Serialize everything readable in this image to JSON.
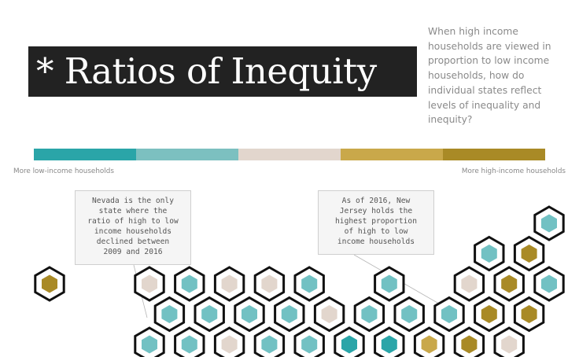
{
  "header": {
    "title": "* Ratios of Inequity",
    "subtitle": "When high income households are viewed in proportion to low income households, how do individual states reflect levels of inequality and inequity?"
  },
  "legend": {
    "colors": [
      "#2aa5a8",
      "#7cc0c0",
      "#e2d6cd",
      "#c9a84a",
      "#a98a26"
    ],
    "left_label": "More low-income households",
    "right_label": "More high-income households"
  },
  "annotations": {
    "nevada": "Nevada is the only\nstate where the\nratio of high to low\nincome households\ndeclined between\n2009 and 2016",
    "new_jersey": "As of 2016, New\nJersey holds the\nhighest proportion\nof high to low\nincome households"
  },
  "hex_map": {
    "palette": {
      "teal_dark": "#2aa5a8",
      "teal": "#72c1c3",
      "beige": "#e2d6cd",
      "gold": "#a98a26",
      "gold_light": "#c9a84a"
    },
    "tiles": [
      {
        "row": 0,
        "col": 12.5,
        "color": "teal"
      },
      {
        "row": 1,
        "col": 11,
        "color": "teal"
      },
      {
        "row": 1,
        "col": 12,
        "color": "gold"
      },
      {
        "row": 2,
        "col": 0,
        "color": "gold"
      },
      {
        "row": 2,
        "col": 2.5,
        "color": "beige"
      },
      {
        "row": 2,
        "col": 3.5,
        "color": "teal"
      },
      {
        "row": 2,
        "col": 4.5,
        "color": "beige"
      },
      {
        "row": 2,
        "col": 5.5,
        "color": "beige"
      },
      {
        "row": 2,
        "col": 6.5,
        "color": "teal"
      },
      {
        "row": 2,
        "col": 8.5,
        "color": "teal"
      },
      {
        "row": 2,
        "col": 10.5,
        "color": "beige"
      },
      {
        "row": 2,
        "col": 11.5,
        "color": "gold"
      },
      {
        "row": 2,
        "col": 12.5,
        "color": "teal"
      },
      {
        "row": 3,
        "col": 3,
        "color": "teal"
      },
      {
        "row": 3,
        "col": 4,
        "color": "teal"
      },
      {
        "row": 3,
        "col": 5,
        "color": "teal"
      },
      {
        "row": 3,
        "col": 6,
        "color": "teal"
      },
      {
        "row": 3,
        "col": 7,
        "color": "beige"
      },
      {
        "row": 3,
        "col": 8,
        "color": "teal"
      },
      {
        "row": 3,
        "col": 9,
        "color": "teal"
      },
      {
        "row": 3,
        "col": 10,
        "color": "teal"
      },
      {
        "row": 3,
        "col": 11,
        "color": "gold"
      },
      {
        "row": 3,
        "col": 12,
        "color": "gold"
      },
      {
        "row": 4,
        "col": 2.5,
        "color": "teal"
      },
      {
        "row": 4,
        "col": 3.5,
        "color": "teal"
      },
      {
        "row": 4,
        "col": 4.5,
        "color": "beige"
      },
      {
        "row": 4,
        "col": 5.5,
        "color": "teal"
      },
      {
        "row": 4,
        "col": 6.5,
        "color": "teal"
      },
      {
        "row": 4,
        "col": 7.5,
        "color": "teal_dark"
      },
      {
        "row": 4,
        "col": 8.5,
        "color": "teal_dark"
      },
      {
        "row": 4,
        "col": 9.5,
        "color": "gold_light"
      },
      {
        "row": 4,
        "col": 10.5,
        "color": "gold"
      },
      {
        "row": 4,
        "col": 11.5,
        "color": "beige"
      }
    ]
  }
}
